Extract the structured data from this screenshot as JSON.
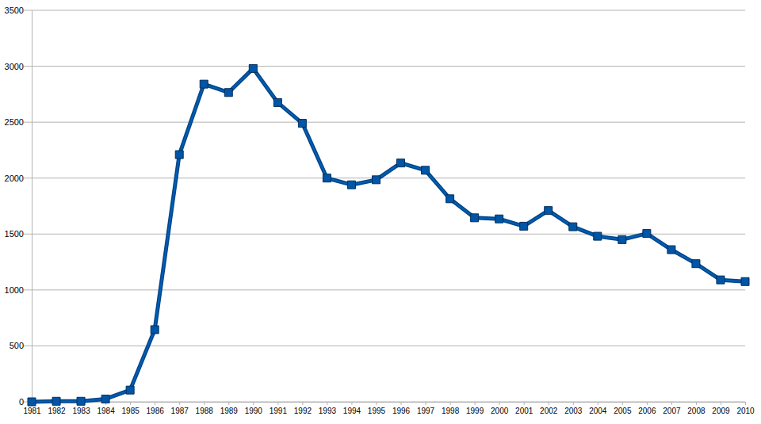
{
  "chart_data": {
    "type": "line",
    "categories": [
      "1981",
      "1982",
      "1983",
      "1984",
      "1985",
      "1986",
      "1987",
      "1988",
      "1989",
      "1990",
      "1991",
      "1992",
      "1993",
      "1994",
      "1995",
      "1996",
      "1997",
      "1998",
      "1999",
      "2000",
      "2001",
      "2002",
      "2003",
      "2004",
      "2005",
      "2006",
      "2007",
      "2008",
      "2009",
      "2010"
    ],
    "values": [
      0,
      5,
      5,
      25,
      105,
      645,
      2210,
      2840,
      2765,
      2980,
      2675,
      2490,
      2000,
      1940,
      1985,
      2135,
      2070,
      1815,
      1645,
      1635,
      1570,
      1710,
      1565,
      1480,
      1450,
      1505,
      1360,
      1235,
      1090,
      1075
    ],
    "color": "#004586",
    "marker": "square",
    "ylim": [
      0,
      3500
    ],
    "yticks": [
      0,
      500,
      1000,
      1500,
      2000,
      2500,
      3000,
      3500
    ],
    "grid": true
  }
}
